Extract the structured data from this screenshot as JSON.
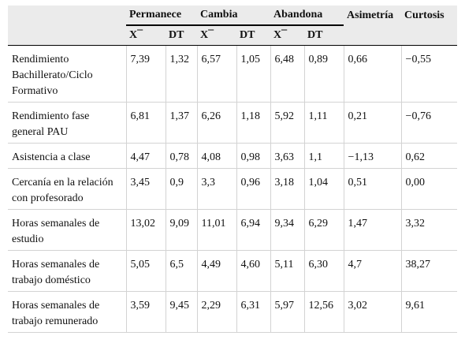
{
  "table": {
    "group_headers": [
      "Permanece",
      "Cambia",
      "Abandona",
      "Asimetría",
      "Curtosis"
    ],
    "sub_headers": [
      "X¯",
      "DT",
      "X¯",
      "DT",
      "X¯",
      "DT"
    ],
    "rows": [
      {
        "label": "Rendimiento Bachillerato/Ciclo Formativo",
        "values": [
          "7,39",
          "1,32",
          "6,57",
          "1,05",
          "6,48",
          "0,89",
          "0,66",
          "−0,55"
        ]
      },
      {
        "label": "Rendimiento fase general PAU",
        "values": [
          "6,81",
          "1,37",
          "6,26",
          "1,18",
          "5,92",
          "1,11",
          "0,21",
          "−0,76"
        ]
      },
      {
        "label": "Asistencia a clase",
        "values": [
          "4,47",
          "0,78",
          "4,08",
          "0,98",
          "3,63",
          "1,1",
          "−1,13",
          "0,62"
        ]
      },
      {
        "label": "Cercanía en la relación con profesorado",
        "values": [
          "3,45",
          "0,9",
          "3,3",
          "0,96",
          "3,18",
          "1,04",
          "0,51",
          "0,00"
        ]
      },
      {
        "label": "Horas semanales de estudio",
        "values": [
          "13,02",
          "9,09",
          "11,01",
          "6,94",
          "9,34",
          "6,29",
          "1,47",
          "3,32"
        ]
      },
      {
        "label": "Horas semanales de trabajo doméstico",
        "values": [
          "5,05",
          "6,5",
          "4,49",
          "4,60",
          "5,11",
          "6,30",
          "4,7",
          "38,27"
        ]
      },
      {
        "label": "Horas semanales de trabajo remunerado",
        "values": [
          "3,59",
          "9,45",
          "2,29",
          "6,31",
          "5,97",
          "12,56",
          "3,02",
          "9,61"
        ]
      }
    ]
  }
}
